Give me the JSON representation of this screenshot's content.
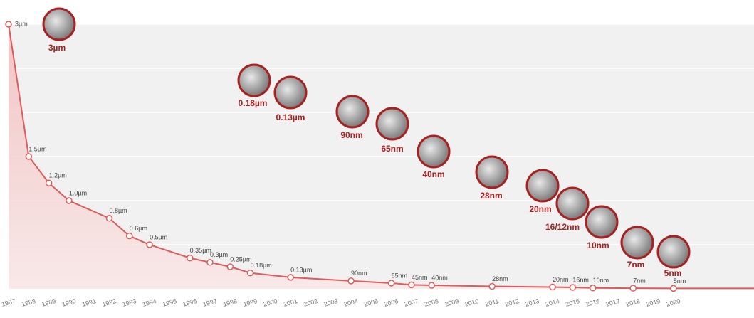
{
  "chart_data": {
    "type": "line",
    "x": [
      1987,
      1988,
      1989,
      1990,
      1992,
      1993,
      1994,
      1996,
      1997,
      1998,
      1999,
      2001,
      2004,
      2006,
      2007,
      2008,
      2011,
      2014,
      2015,
      2016,
      2018,
      2020
    ],
    "values": [
      3000,
      1500,
      1200,
      1000,
      800,
      600,
      500,
      350,
      300,
      250,
      180,
      130,
      90,
      65,
      45,
      40,
      28,
      20,
      16,
      10,
      7,
      5
    ],
    "value_labels": [
      "3µm",
      "1.5µm",
      "1.2µm",
      "1.0µm",
      "0.8µm",
      "0.6µm",
      "0.5µm",
      "0.35µm",
      "0.3µm",
      "0.25µm",
      "0.18µm",
      "0.13µm",
      "90nm",
      "65nm",
      "45nm",
      "40nm",
      "28nm",
      "20nm",
      "16nm",
      "10nm",
      "7nm",
      "5nm"
    ],
    "color": "#e05a5a",
    "xlim": [
      1987,
      2024
    ],
    "xticks": [
      1987,
      1988,
      1989,
      1990,
      1991,
      1992,
      1993,
      1994,
      1995,
      1996,
      1997,
      1998,
      1999,
      2000,
      2001,
      2002,
      2003,
      2004,
      2005,
      2006,
      2007,
      2008,
      2009,
      2010,
      2011,
      2012,
      2013,
      2014,
      2015,
      2016,
      2017,
      2018,
      2019,
      2020
    ],
    "ylim": [
      0,
      3000
    ],
    "yticks": [
      0,
      500,
      1000,
      1500,
      2000,
      2500,
      3000
    ],
    "grid": true,
    "badges": [
      "3µm",
      "0.18µm",
      "0.13µm",
      "90nm",
      "65nm",
      "40nm",
      "28nm",
      "20nm",
      "16/12nm",
      "10nm",
      "7nm",
      "5nm"
    ]
  }
}
